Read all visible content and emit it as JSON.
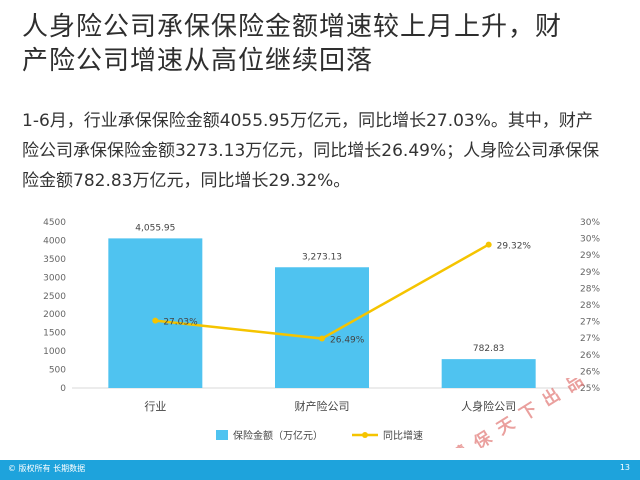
{
  "header": {
    "title_line1": "人身险公司承保保险金额增速较上月上升，财",
    "title_line2": "产险公司增速从高位继续回落"
  },
  "summary": {
    "line1": "1-6月，行业承保保险金额4055.95万亿元，同比增长27.03%。其中，财产",
    "line2": "险公司承保保险金额3273.13万亿元，同比增长26.49%；人身险公司承保保",
    "line3": "险金额782.83万亿元，同比增长29.32%。"
  },
  "chart_data": {
    "type": "bar",
    "categories": [
      "行业",
      "财产险公司",
      "人身险公司"
    ],
    "series": [
      {
        "name": "保险金额（万亿元）",
        "type": "bar",
        "axis": "left",
        "values": [
          4055.95,
          3273.13,
          782.83
        ],
        "labels": [
          "4,055.95",
          "3,273.13",
          "782.83"
        ]
      },
      {
        "name": "同比增速",
        "type": "line",
        "axis": "right",
        "values": [
          27.03,
          26.49,
          29.32
        ],
        "labels": [
          "27.03%",
          "26.49%",
          "29.32%"
        ]
      }
    ],
    "y_left": {
      "min": 0,
      "max": 4500,
      "ticks": [
        "0",
        "500",
        "1000",
        "1500",
        "2000",
        "2500",
        "3000",
        "3500",
        "4000",
        "4500"
      ]
    },
    "y_right": {
      "min": 25,
      "max": 30,
      "ticks": [
        "25%",
        "26%",
        "26%",
        "27%",
        "27%",
        "28%",
        "28%",
        "29%",
        "29%",
        "30%",
        "30%"
      ]
    },
    "grid": false,
    "legend": "bottom",
    "colors": {
      "bar": "#4fc3f0",
      "line": "#f5c400"
    }
  },
  "watermark": {
    "text": "慧保天下出品",
    "color": "#d9534f"
  },
  "footer": {
    "copyright": "© 版权所有 长期数据",
    "page": "13",
    "color": "#1ea3dc"
  }
}
